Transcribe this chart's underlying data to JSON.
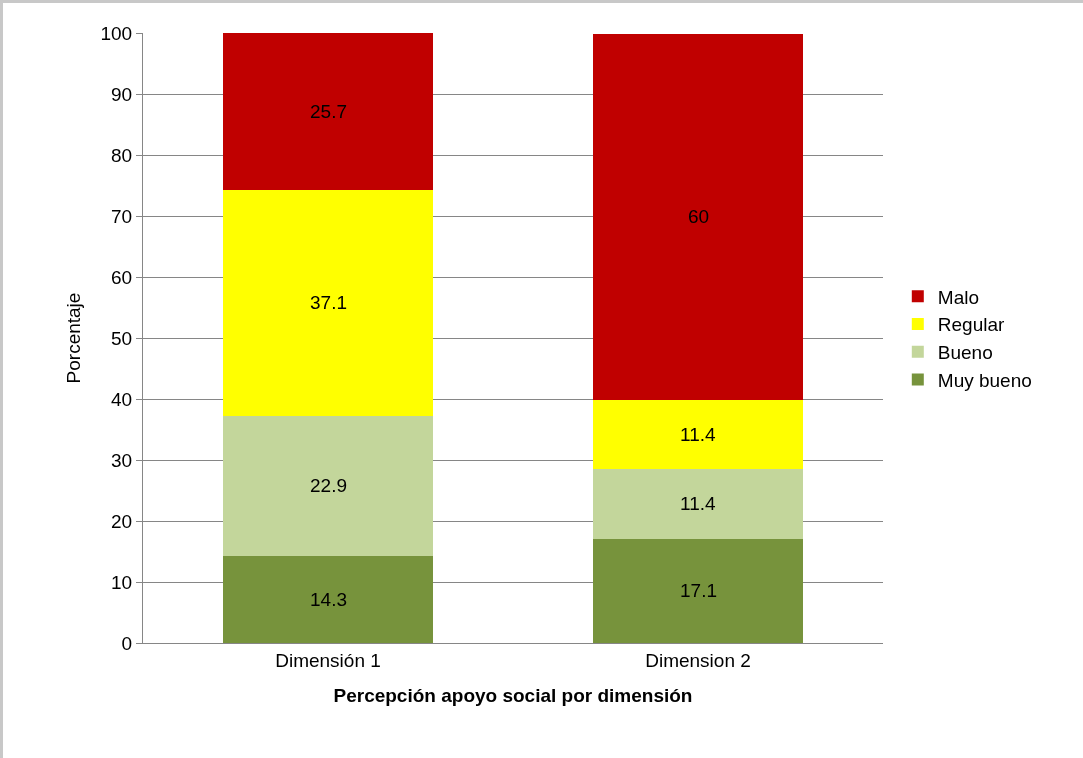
{
  "chart_data": {
    "type": "bar",
    "stacked": true,
    "xlabel": "Percepción apoyo social por dimensión",
    "ylabel": "Porcentaje",
    "categories": [
      "Dimensión 1",
      "Dimension 2"
    ],
    "series": [
      {
        "name": "Muy bueno",
        "color": "#77933c",
        "values": [
          14.3,
          17.1
        ]
      },
      {
        "name": "Bueno",
        "color": "#c3d69b",
        "values": [
          22.9,
          11.4
        ]
      },
      {
        "name": "Regular",
        "color": "#ffff00",
        "values": [
          37.1,
          11.4
        ]
      },
      {
        "name": "Malo",
        "color": "#c00000",
        "values": [
          25.7,
          60
        ]
      }
    ],
    "ylim": [
      0,
      100
    ],
    "yticks": [
      0,
      10,
      20,
      30,
      40,
      50,
      60,
      70,
      80,
      90,
      100
    ],
    "grid": "y",
    "legend": "right",
    "data_labels": true
  }
}
